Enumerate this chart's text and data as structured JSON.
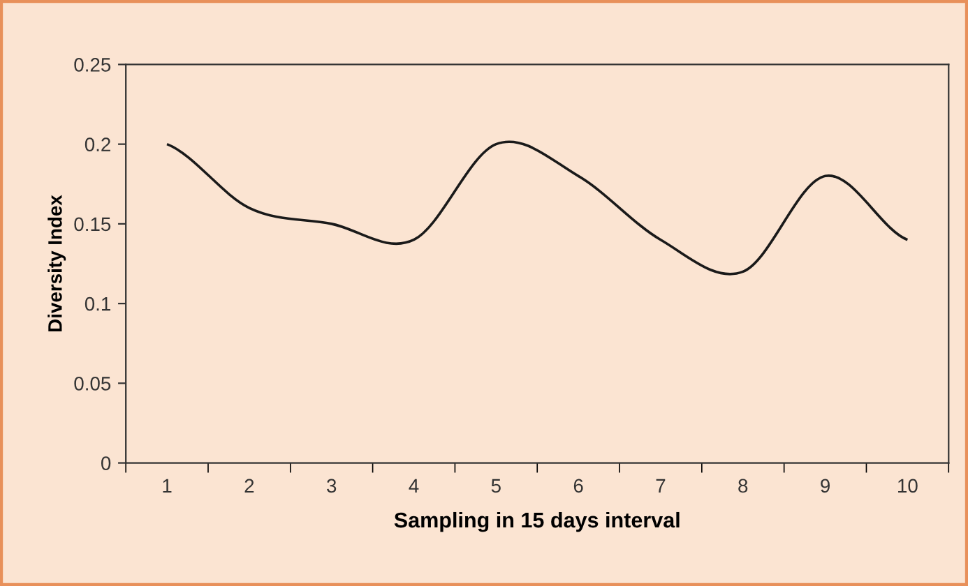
{
  "chart_data": {
    "type": "line",
    "xlabel": "Sampling in 15 days interval",
    "ylabel": "Diversity Index",
    "categories": [
      "1",
      "2",
      "3",
      "4",
      "5",
      "6",
      "7",
      "8",
      "9",
      "10"
    ],
    "series": [
      {
        "color": "#1a1a1a",
        "values": [
          0.2,
          0.16,
          0.15,
          0.14,
          0.2,
          0.18,
          0.14,
          0.12,
          0.18,
          0.14
        ]
      }
    ],
    "ylim": [
      0,
      0.25
    ],
    "yticks": [
      0,
      0.05,
      0.1,
      0.15,
      0.2,
      0.25
    ],
    "grid": false,
    "legend": false,
    "marker": "none",
    "line_style": "solid"
  }
}
